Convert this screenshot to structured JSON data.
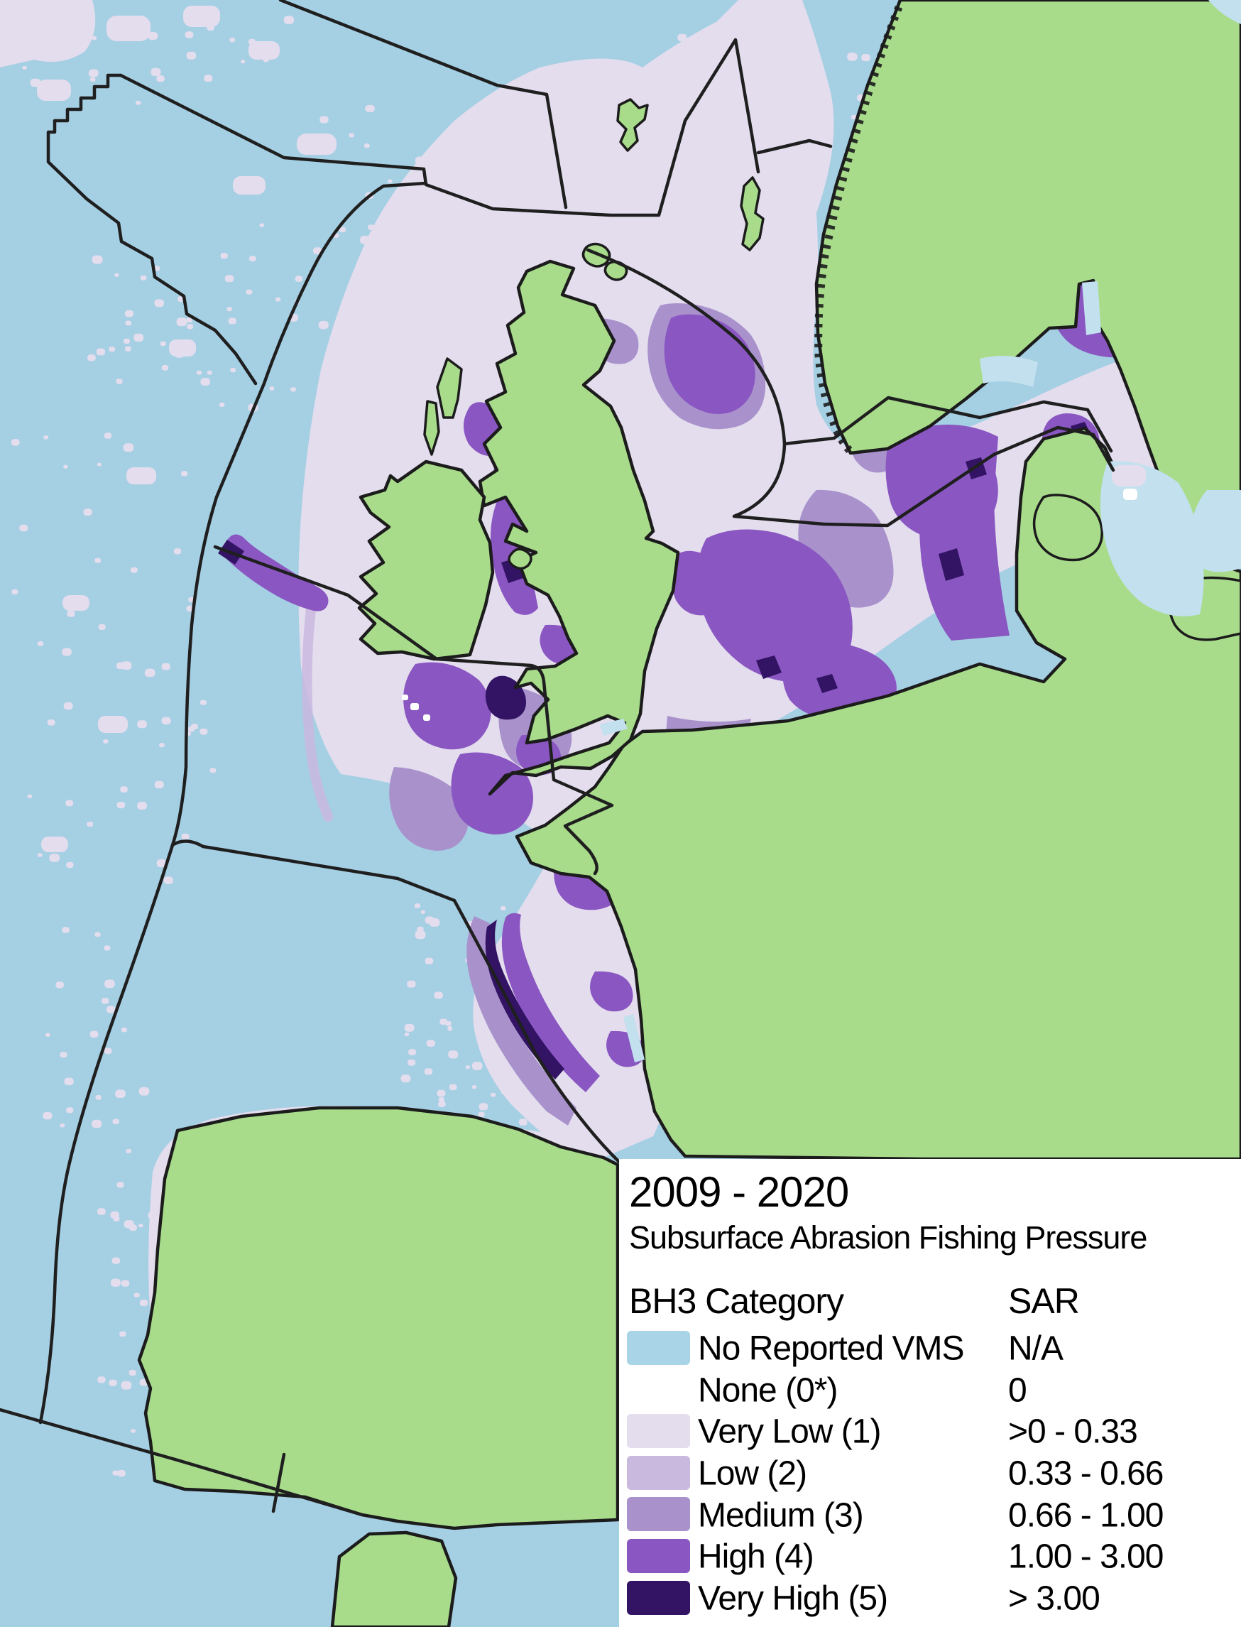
{
  "legend": {
    "title": "2009 - 2020",
    "subtitle": "Subsurface Abrasion Fishing Pressure",
    "col1_header": "BH3 Category",
    "col2_header": "SAR",
    "rows": [
      {
        "category": "No Reported VMS",
        "sar": "N/A",
        "color": "#A9D3E6"
      },
      {
        "category": "None (0*)",
        "sar": "0",
        "color": "#FFFFFF"
      },
      {
        "category": "Very Low (1)",
        "sar": ">0 - 0.33",
        "color": "#E3DDEE"
      },
      {
        "category": "Low (2)",
        "sar": "0.33 - 0.66",
        "color": "#C9B9DF"
      },
      {
        "category": "Medium (3)",
        "sar": "0.66 - 1.00",
        "color": "#A992CC"
      },
      {
        "category": "High (4)",
        "sar": "1.00 - 3.00",
        "color": "#8A56C1"
      },
      {
        "category": "Very High (5)",
        "sar": "> 3.00",
        "color": "#321364"
      }
    ]
  },
  "map": {
    "palette": {
      "ocean": "#A5CFE3",
      "pale": "#C2E0EE",
      "land": "#A8DC8B",
      "coast": "#1C1C1C",
      "boundary": "#1F1F1F",
      "very_low": "#E3DDEE",
      "low": "#C9B9DF",
      "medium": "#A992CC",
      "high": "#8A56C1",
      "very_high": "#321364"
    }
  }
}
